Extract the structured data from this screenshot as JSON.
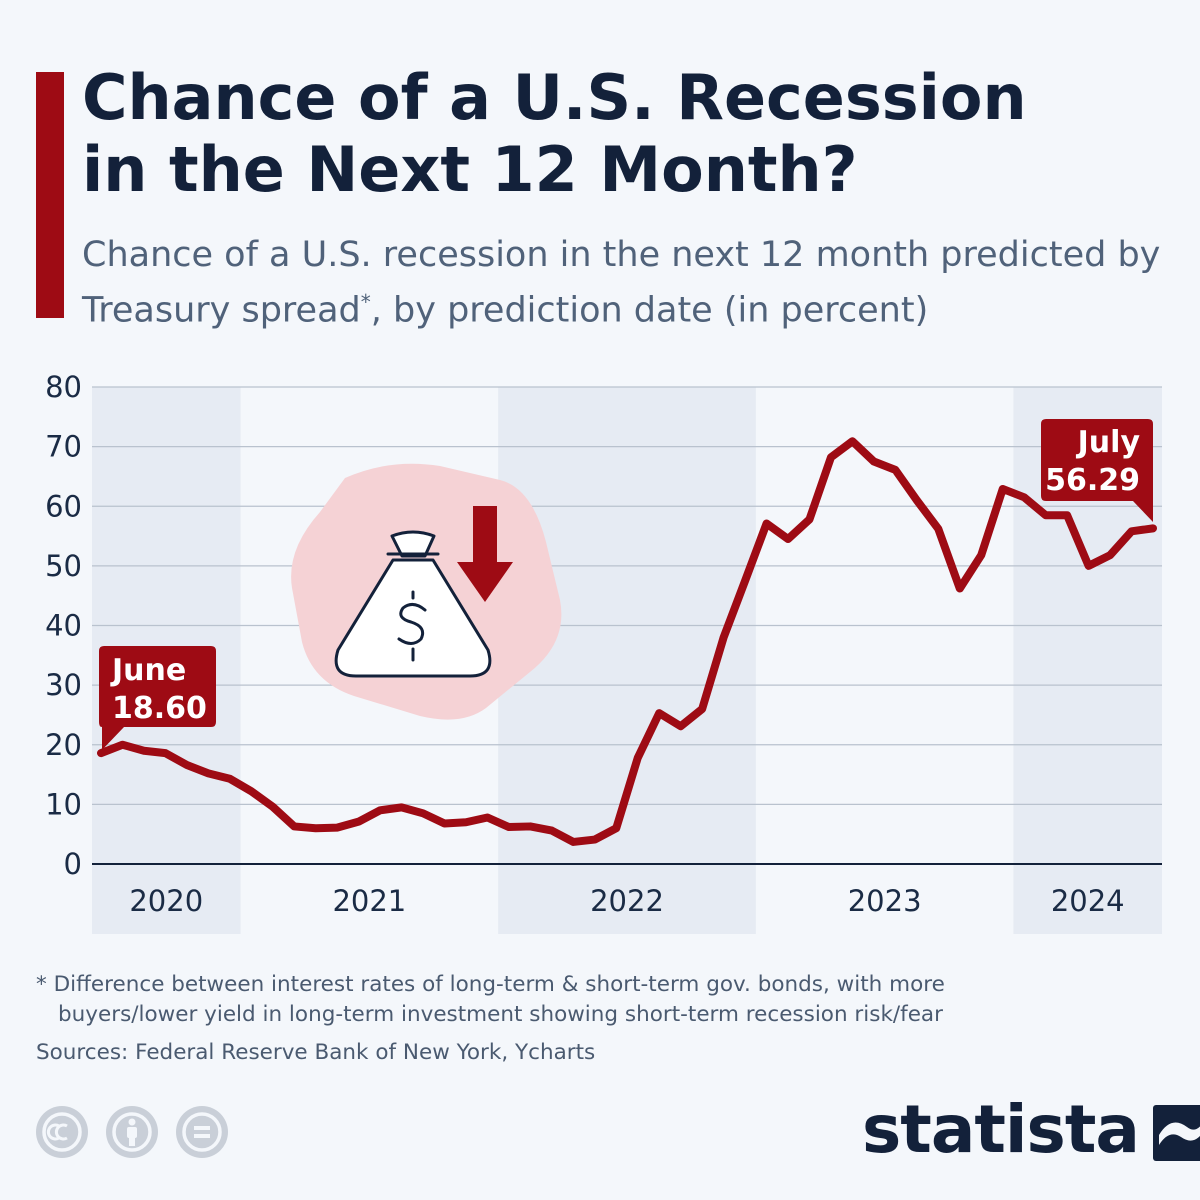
{
  "header": {
    "title_line1": "Chance of a U.S. Recession",
    "title_line2": "in the Next 12 Month?",
    "subtitle_part1": "Chance of a U.S. recession in the next 12 month predicted by Treasury spread",
    "subtitle_mark": "*",
    "subtitle_part2": ", by prediction date (in percent)"
  },
  "chart_data": {
    "type": "line",
    "title": "Chance of a U.S. Recession in the Next 12 Month?",
    "subtitle": "Chance of a U.S. recession in the next 12 month predicted by Treasury spread*, by prediction date (in percent)",
    "xlabel": "",
    "ylabel": "",
    "ylim": [
      0,
      80
    ],
    "yticks": [
      0,
      10,
      20,
      30,
      40,
      50,
      60,
      70,
      80
    ],
    "grid": true,
    "color": "#9e0b14",
    "x_labels": [
      "2020",
      "2021",
      "2022",
      "2023",
      "2024"
    ],
    "x": [
      "2020-06",
      "2020-07",
      "2020-08",
      "2020-09",
      "2020-10",
      "2020-11",
      "2020-12",
      "2021-01",
      "2021-02",
      "2021-03",
      "2021-04",
      "2021-05",
      "2021-06",
      "2021-07",
      "2021-08",
      "2021-09",
      "2021-10",
      "2021-11",
      "2021-12",
      "2022-01",
      "2022-02",
      "2022-03",
      "2022-04",
      "2022-05",
      "2022-06",
      "2022-07",
      "2022-08",
      "2022-09",
      "2022-10",
      "2022-11",
      "2022-12",
      "2023-01",
      "2023-02",
      "2023-03",
      "2023-04",
      "2023-05",
      "2023-06",
      "2023-07",
      "2023-08",
      "2023-09",
      "2023-10",
      "2023-11",
      "2023-12",
      "2024-01",
      "2024-02",
      "2024-03",
      "2024-04",
      "2024-05",
      "2024-06",
      "2024-07"
    ],
    "series": [
      {
        "values": [
          18.6,
          20.0,
          19.0,
          18.6,
          16.6,
          15.2,
          14.3,
          12.2,
          9.6,
          6.3,
          6.0,
          6.1,
          7.1,
          9.0,
          9.5,
          8.5,
          6.8,
          7.0,
          7.8,
          6.2,
          6.3,
          5.6,
          3.7,
          4.1,
          6.0,
          17.8,
          25.3,
          23.1,
          26.0,
          38.0,
          47.5,
          57.1,
          54.5,
          57.8,
          68.2,
          70.9,
          67.5,
          66.1,
          61.0,
          56.2,
          46.2,
          51.8,
          62.9,
          61.5,
          58.5,
          58.5,
          50.0,
          51.8,
          55.8,
          56.29
        ]
      }
    ],
    "annotations": [
      {
        "label": "June",
        "value": "18.60"
      },
      {
        "label": "July",
        "value": "56.29"
      }
    ]
  },
  "footnote": {
    "line1": "* Difference between interest rates of long-term & short-term gov. bonds, with more",
    "line2": "buyers/lower yield in long-term investment showing short-term recession risk/fear"
  },
  "source": "Sources: Federal Reserve Bank of New York, Ycharts",
  "brand": {
    "name": "statista"
  },
  "icons": [
    "money-bag-icon",
    "down-arrow-icon",
    "cc-icon",
    "by-icon",
    "nd-icon",
    "statista-logo-icon"
  ],
  "colors": {
    "accent": "#9e0b14",
    "band": "#e6ebf3",
    "title": "#13213a",
    "subtitle": "#50627a",
    "icon_bg": "#f5d2d5"
  }
}
